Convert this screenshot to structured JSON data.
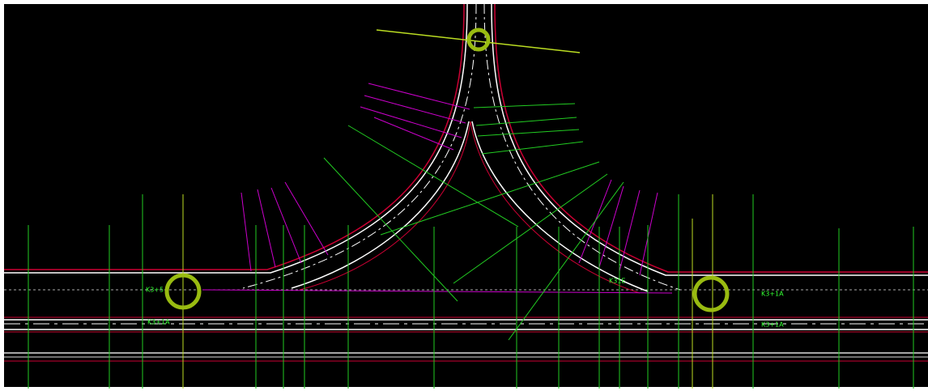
{
  "station_labels": [
    "K3+5",
    "K3+1A",
    "K31E",
    "K3+1A",
    "K3+1A"
  ]
}
